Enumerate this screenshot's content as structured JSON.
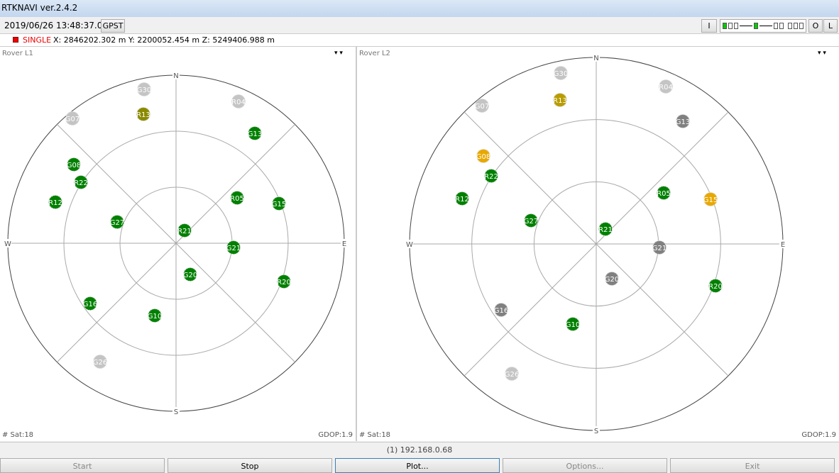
{
  "window": {
    "title": "RTKNAVI ver.2.4.2"
  },
  "toolbar": {
    "time": "2019/06/26 13:48:37.0",
    "time_system": "GPST",
    "buttons": [
      "I",
      "O",
      "L"
    ]
  },
  "solution": {
    "status": "SINGLE",
    "position": "X: 2846202.302 m Y: 2200052.454 m Z: 5249406.988 m"
  },
  "panels": [
    {
      "title": "Rover L1",
      "compass": [
        "N",
        "E",
        "S",
        "W"
      ],
      "sat_count": "# Sat:18",
      "gdop": "GDOP:1.9",
      "satellites": [
        {
          "label": "G30",
          "color": "#c4c4c4"
        },
        {
          "label": "G07",
          "color": "#c4c4c4"
        },
        {
          "label": "R13",
          "color": "#8a8a00"
        },
        {
          "label": "R04",
          "color": "#c4c4c4"
        },
        {
          "label": "G13",
          "color": "#008000"
        },
        {
          "label": "G08",
          "color": "#008000"
        },
        {
          "label": "R22",
          "color": "#008000"
        },
        {
          "label": "R12",
          "color": "#008000"
        },
        {
          "label": "G27",
          "color": "#008000"
        },
        {
          "label": "R05",
          "color": "#008000"
        },
        {
          "label": "G15",
          "color": "#008000"
        },
        {
          "label": "R21",
          "color": "#008000"
        },
        {
          "label": "G21",
          "color": "#008000"
        },
        {
          "label": "G20",
          "color": "#008000"
        },
        {
          "label": "R20",
          "color": "#008000"
        },
        {
          "label": "G16",
          "color": "#008000"
        },
        {
          "label": "G10",
          "color": "#008000"
        },
        {
          "label": "G26",
          "color": "#c4c4c4"
        }
      ]
    },
    {
      "title": "Rover L2",
      "compass": [
        "N",
        "E",
        "S",
        "W"
      ],
      "sat_count": "# Sat:18",
      "gdop": "GDOP:1.9",
      "satellites": [
        {
          "label": "G30",
          "color": "#c4c4c4"
        },
        {
          "label": "G07",
          "color": "#c4c4c4"
        },
        {
          "label": "R13",
          "color": "#b89c00"
        },
        {
          "label": "R04",
          "color": "#c4c4c4"
        },
        {
          "label": "G13",
          "color": "#808080"
        },
        {
          "label": "G08",
          "color": "#e8a800"
        },
        {
          "label": "R22",
          "color": "#008000"
        },
        {
          "label": "R12",
          "color": "#008000"
        },
        {
          "label": "G27",
          "color": "#008000"
        },
        {
          "label": "R05",
          "color": "#008000"
        },
        {
          "label": "G15",
          "color": "#e8a800"
        },
        {
          "label": "R21",
          "color": "#008000"
        },
        {
          "label": "G21",
          "color": "#808080"
        },
        {
          "label": "G20",
          "color": "#808080"
        },
        {
          "label": "R20",
          "color": "#008000"
        },
        {
          "label": "G16",
          "color": "#808080"
        },
        {
          "label": "G10",
          "color": "#008000"
        },
        {
          "label": "G26",
          "color": "#c4c4c4"
        }
      ]
    }
  ],
  "status_bar": {
    "connection": "(1) 192.168.0.68"
  },
  "buttons": [
    "Start",
    "Stop",
    "Plot...",
    "Options...",
    "Exit"
  ]
}
